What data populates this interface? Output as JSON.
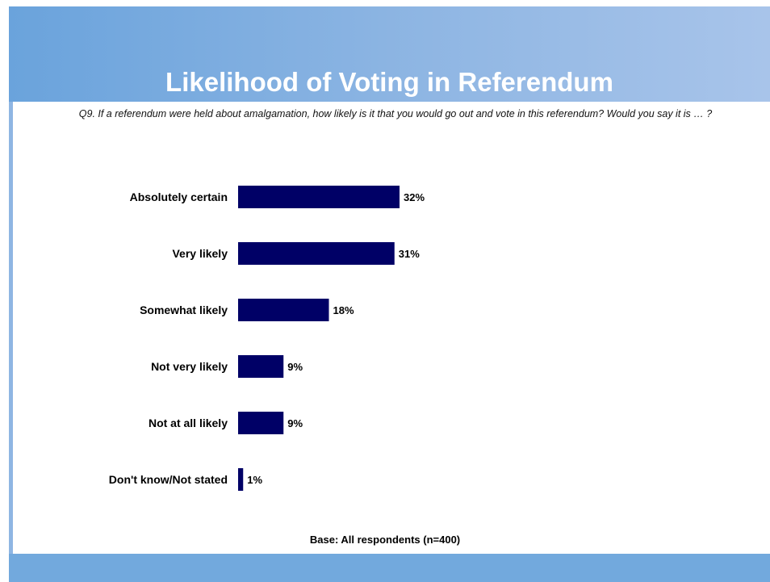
{
  "header": {
    "title": "Likelihood of Voting in Referendum"
  },
  "question": "Q9. If a referendum were held about amalgamation, how likely is it that you would go out and vote in this referendum? Would you say it is … ?",
  "footer": {
    "base_note": "Base: All respondents (n=400)"
  },
  "colors": {
    "bar": "#000066",
    "header_gradient_start": "#6aa3dc",
    "header_gradient_end": "#a8c4ea",
    "footer": "#72a9dd"
  },
  "chart_data": {
    "type": "bar",
    "orientation": "horizontal",
    "categories": [
      "Absolutely certain",
      "Very likely",
      "Somewhat likely",
      "Not very likely",
      "Not at all likely",
      "Don't know/Not stated"
    ],
    "values": [
      32,
      31,
      18,
      9,
      9,
      1
    ],
    "value_labels": [
      "32%",
      "31%",
      "18%",
      "9%",
      "9%",
      "1%"
    ],
    "unit": "%",
    "xlim": [
      0,
      100
    ],
    "grid": false,
    "legend": "none"
  }
}
